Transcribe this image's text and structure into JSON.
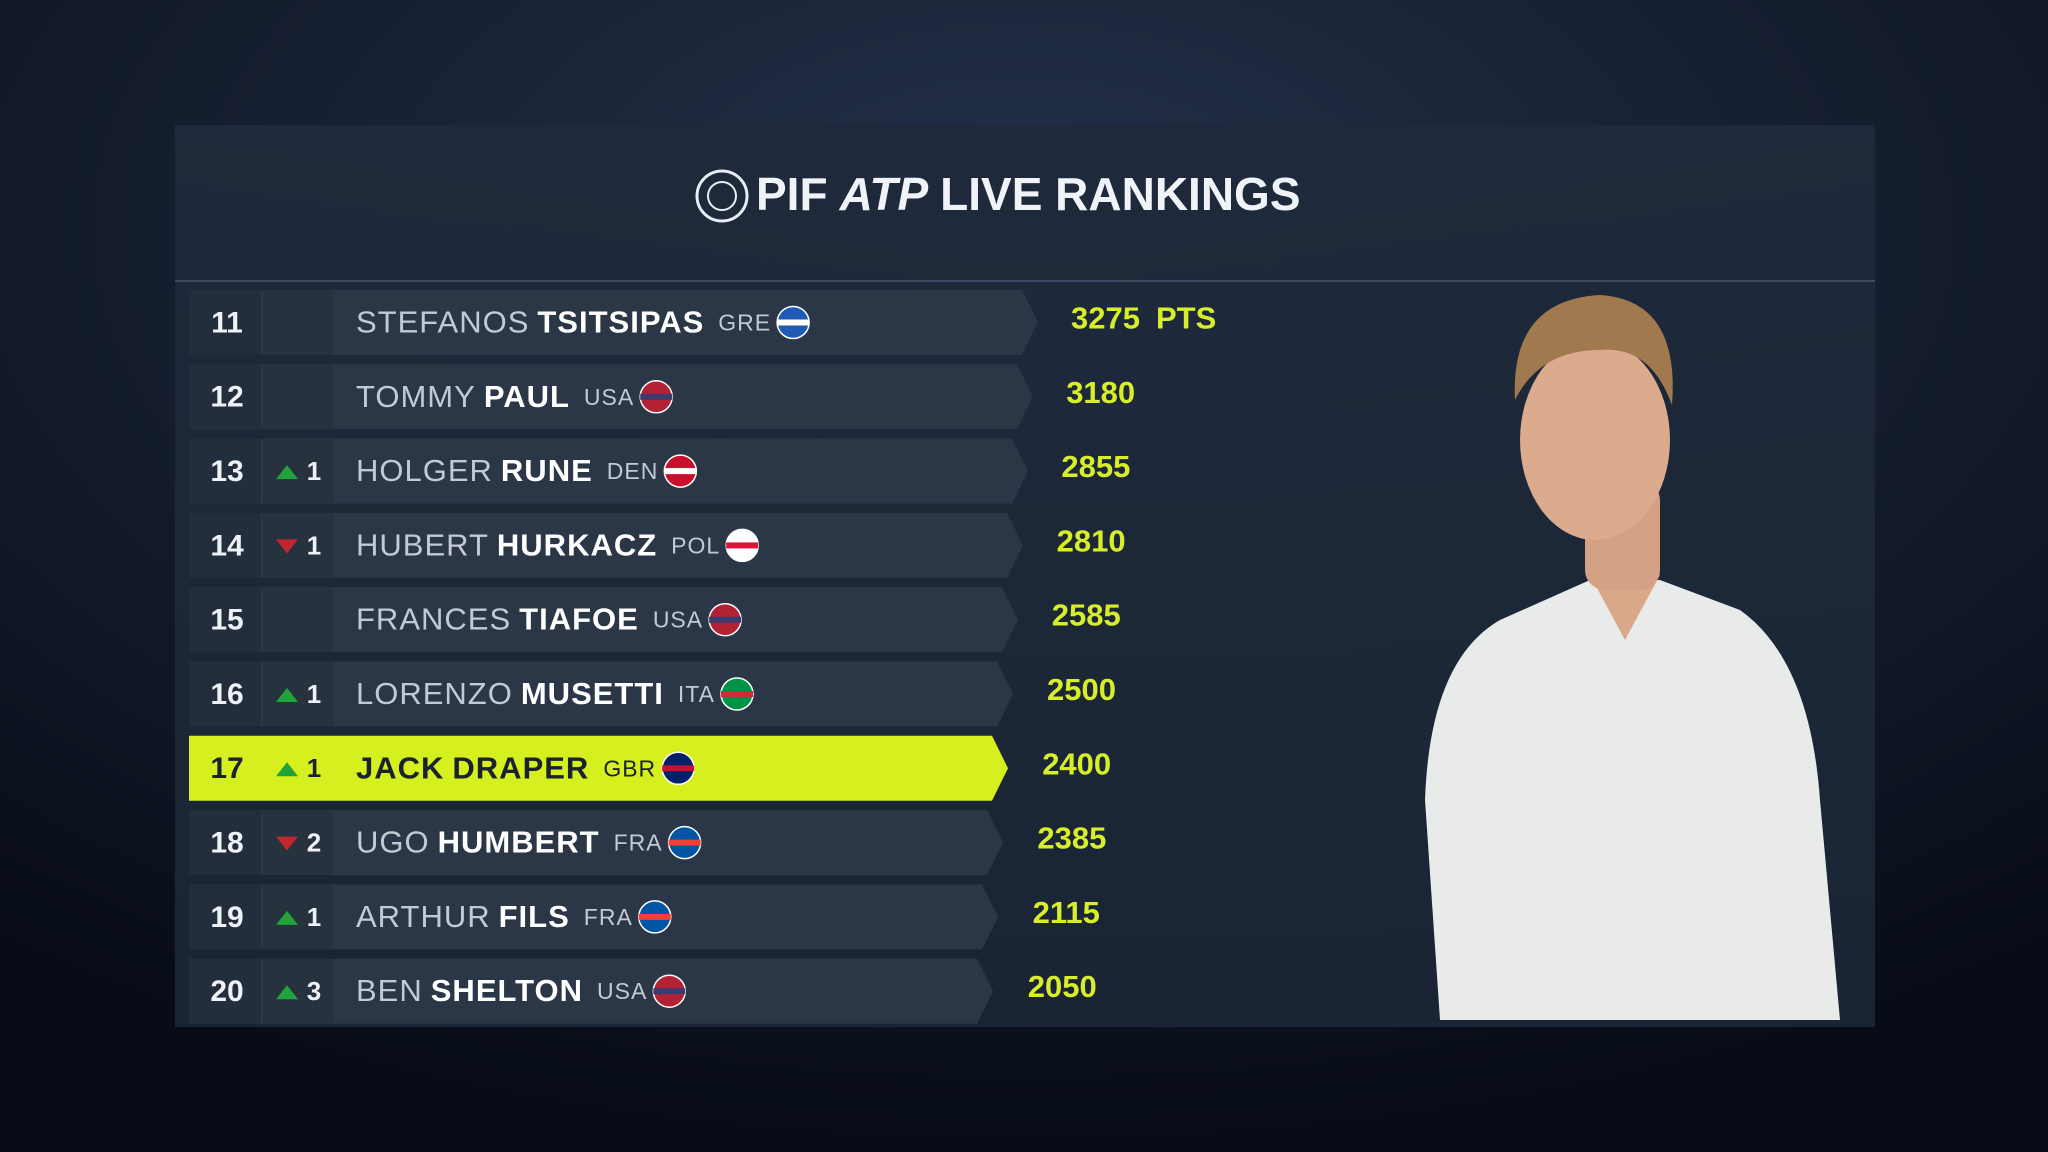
{
  "header": {
    "title_parts": [
      "PIF",
      "ATP",
      "LIVE RANKINGS"
    ]
  },
  "points_unit": "PTS",
  "rows": [
    {
      "rank": 11,
      "move": null,
      "first": "STEFANOS",
      "last": "TSITSIPAS",
      "country": "GRE",
      "points": 3275
    },
    {
      "rank": 12,
      "move": null,
      "first": "TOMMY",
      "last": "PAUL",
      "country": "USA",
      "points": 3180
    },
    {
      "rank": 13,
      "move": {
        "direction": "up",
        "amount": 1
      },
      "first": "HOLGER",
      "last": "RUNE",
      "country": "DEN",
      "points": 2855
    },
    {
      "rank": 14,
      "move": {
        "direction": "down",
        "amount": 1
      },
      "first": "HUBERT",
      "last": "HURKACZ",
      "country": "POL",
      "points": 2810
    },
    {
      "rank": 15,
      "move": null,
      "first": "FRANCES",
      "last": "TIAFOE",
      "country": "USA",
      "points": 2585
    },
    {
      "rank": 16,
      "move": {
        "direction": "up",
        "amount": 1
      },
      "first": "LORENZO",
      "last": "MUSETTI",
      "country": "ITA",
      "points": 2500
    },
    {
      "rank": 17,
      "move": {
        "direction": "up",
        "amount": 1
      },
      "first": "JACK",
      "last": "DRAPER",
      "country": "GBR",
      "points": 2400,
      "highlight": true
    },
    {
      "rank": 18,
      "move": {
        "direction": "down",
        "amount": 2
      },
      "first": "UGO",
      "last": "HUMBERT",
      "country": "FRA",
      "points": 2385
    },
    {
      "rank": 19,
      "move": {
        "direction": "up",
        "amount": 1
      },
      "first": "ARTHUR",
      "last": "FILS",
      "country": "FRA",
      "points": 2115
    },
    {
      "rank": 20,
      "move": {
        "direction": "up",
        "amount": 3
      },
      "first": "BEN",
      "last": "SHELTON",
      "country": "USA",
      "points": 2050
    }
  ]
}
